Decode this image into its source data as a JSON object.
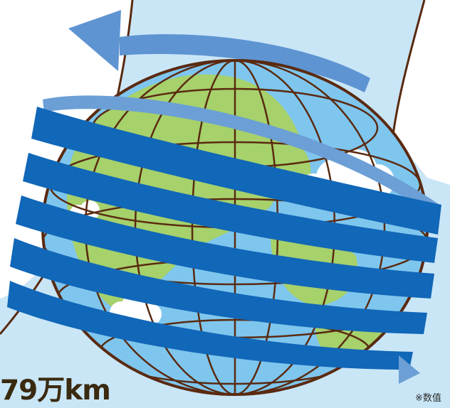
{
  "illustration": {
    "colors": {
      "sky_panel": "#c9e6f7",
      "ocean": "#7fc6ee",
      "land": "#a6d16b",
      "grid_lines": "#5a2a10",
      "wrap_band": "#1167b8",
      "wrap_band_light": "#6b9fd6",
      "cloud": "#ffffff"
    },
    "icons": {
      "globe": "globe-icon",
      "rotation_arrow": "curved-arrow-icon",
      "cloud": "cloud-icon"
    }
  },
  "distance_label": "79万km",
  "footnote": "※数值"
}
